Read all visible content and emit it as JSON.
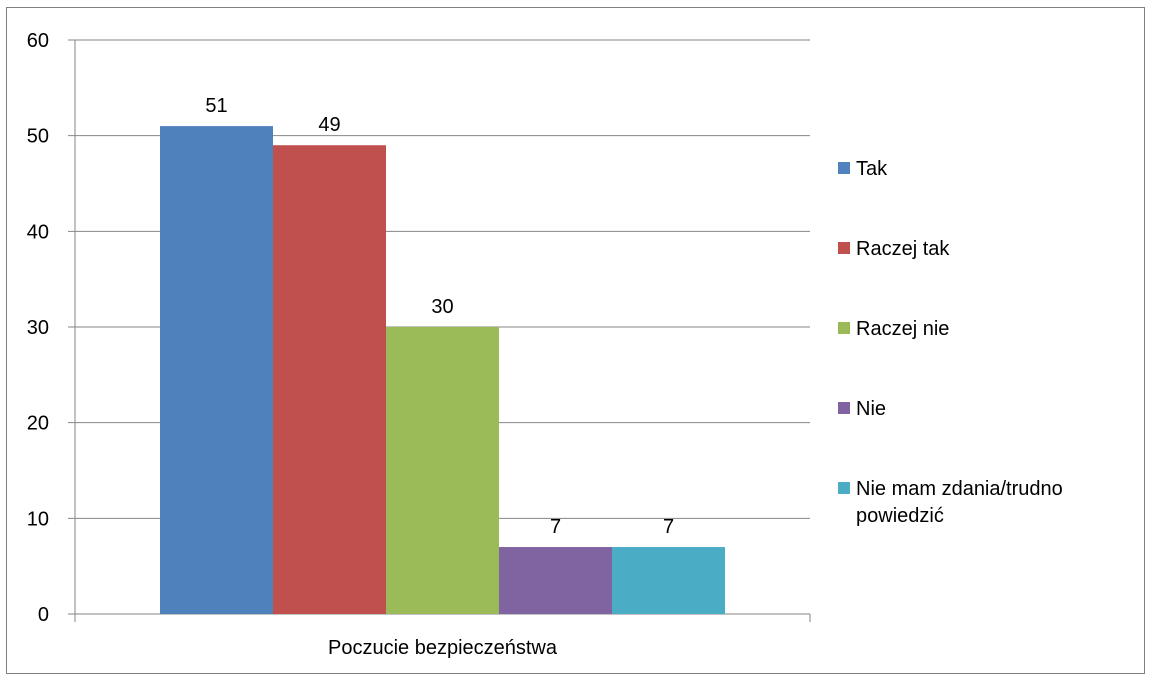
{
  "header": {
    "title": ""
  },
  "chart_data": {
    "type": "bar",
    "categories": [
      "Poczucie bezpieczeństwa"
    ],
    "series": [
      {
        "name": "Tak",
        "values": [
          51
        ],
        "color": "#4f81bd"
      },
      {
        "name": "Raczej tak",
        "values": [
          49
        ],
        "color": "#c0504d"
      },
      {
        "name": "Raczej nie",
        "values": [
          30
        ],
        "color": "#9bbb59"
      },
      {
        "name": "Nie",
        "values": [
          7
        ],
        "color": "#8064a2"
      },
      {
        "name": "Nie mam zdania/trudno powiedzić",
        "values": [
          7
        ],
        "color": "#4bacc6"
      }
    ],
    "ylim": [
      0,
      60
    ],
    "yticks": [
      0,
      10,
      20,
      30,
      40,
      50,
      60
    ],
    "xlabel": "",
    "ylabel": "",
    "grid": true,
    "legend": "right"
  }
}
